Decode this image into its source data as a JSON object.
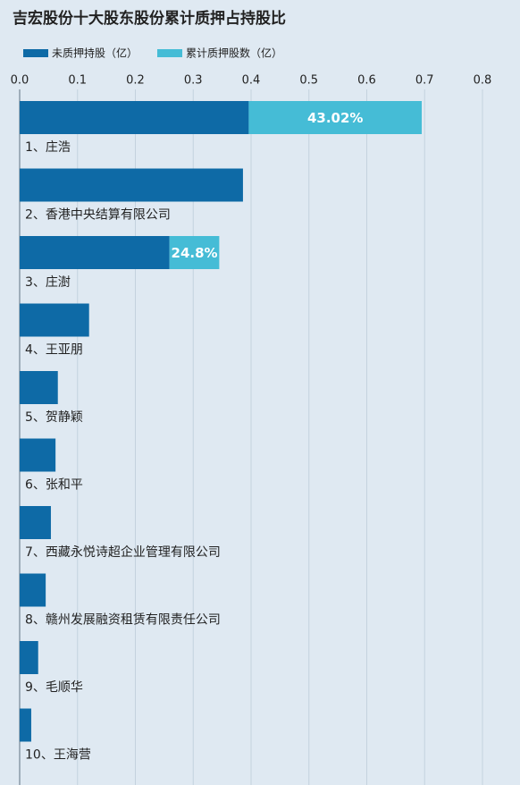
{
  "chart_data": {
    "type": "stacked-barh",
    "title": "吉宏股份十大股东股份累计质押占持股比",
    "categories": [
      "1、庄浩",
      "2、香港中央结算有限公司",
      "3、庄澍",
      "4、王亚朋",
      "5、贺静颖",
      "6、张和平",
      "7、西藏永悦诗超企业管理有限公司",
      "8、赣州发展融资租赁有限责任公司",
      "9、毛顺华",
      "10、王海营"
    ],
    "series": [
      {
        "name": "未质押持股（亿）",
        "color": "#0e6aa6",
        "values": [
          0.396,
          0.386,
          0.259,
          0.12,
          0.066,
          0.062,
          0.054,
          0.045,
          0.032,
          0.02
        ]
      },
      {
        "name": "累计质押股数（亿）",
        "color": "#45bcd6",
        "values": [
          0.299,
          null,
          0.086,
          null,
          null,
          null,
          null,
          null,
          null,
          null
        ]
      }
    ],
    "ratio_labels": {
      "values": [
        43.02,
        null,
        24.8,
        null,
        null,
        null,
        null,
        null,
        null,
        null
      ],
      "value_labels": [
        "43.02%",
        null,
        "24.8%",
        null,
        null,
        null,
        null,
        null,
        null,
        null
      ]
    },
    "xlim": [
      0,
      0.8
    ],
    "xticks": [
      {
        "value": 0,
        "label": "0.0"
      },
      0.1,
      0.2,
      0.3,
      0.4,
      0.5,
      0.6,
      0.7,
      0.8
    ],
    "grid": true
  }
}
